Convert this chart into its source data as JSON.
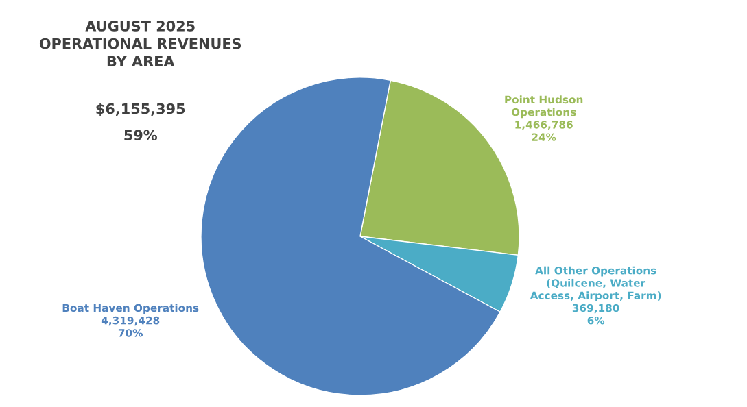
{
  "chart_data": {
    "type": "pie",
    "title": "AUGUST 2025\nOPERATIONAL REVENUES\nBY AREA",
    "annotations": [
      "$6,155,395",
      "59%"
    ],
    "categories": [
      "Point Hudson\nOperations",
      "All Other Operations\n(Quilcene, Water\nAccess, Airport, Farm)",
      "Boat Haven Operations"
    ],
    "values": [
      1466786,
      369180,
      4319428
    ],
    "value_labels": [
      "1,466,786\n24%",
      "369,180\n6%",
      "4,319,428\n70%"
    ],
    "colors": [
      "#9bbb59",
      "#4bacc6",
      "#4f81bd"
    ]
  }
}
